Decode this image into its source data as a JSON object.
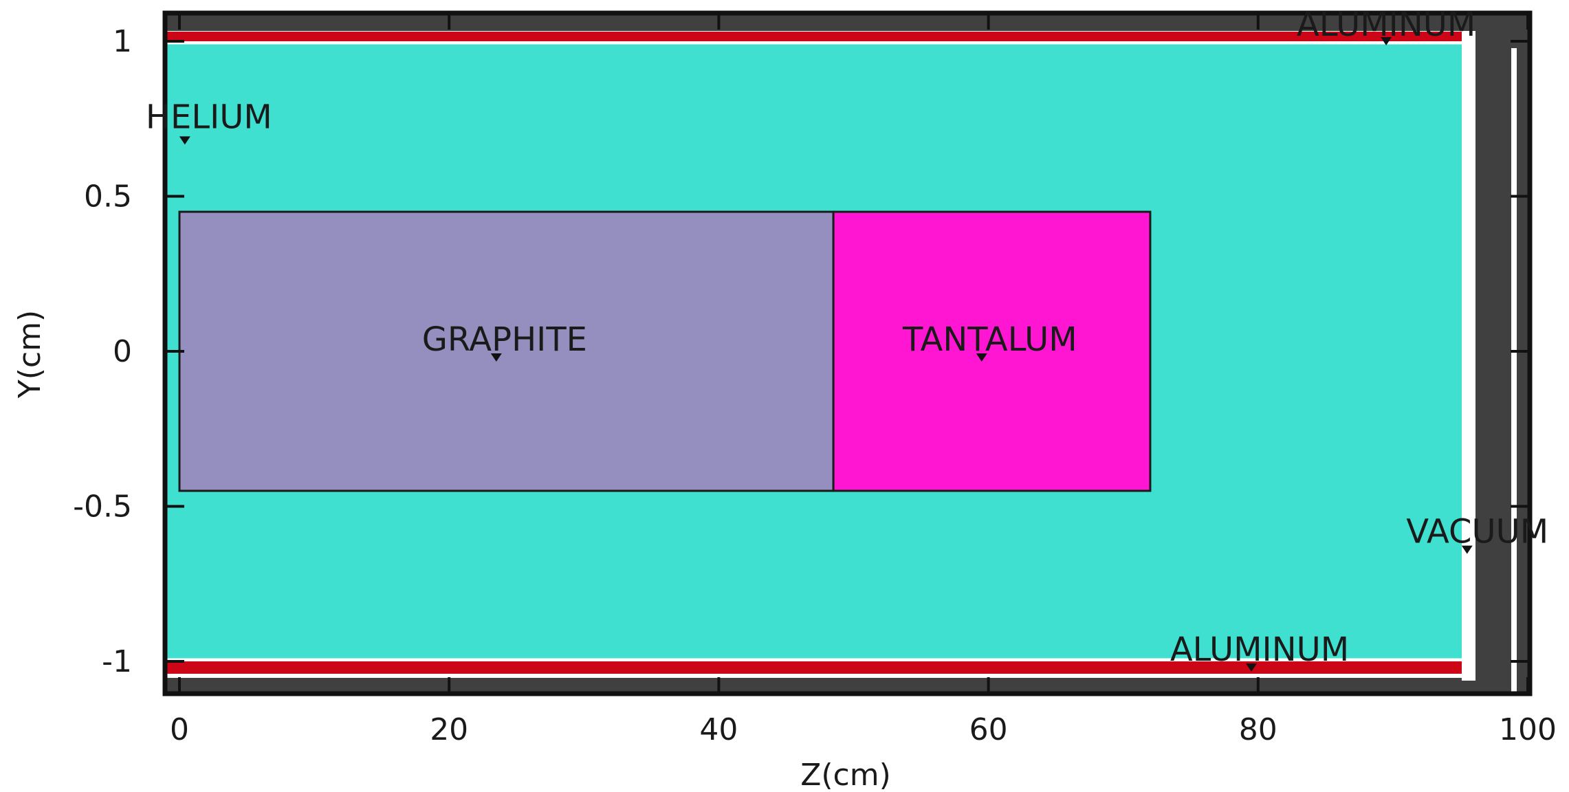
{
  "chart_data": {
    "type": "geometry",
    "xlabel": "Z(cm)",
    "ylabel": "Y(cm)",
    "xlim": [
      -1.2,
      100
    ],
    "ylim": [
      -1.1,
      1.1
    ],
    "x_ticks": [
      "0",
      "20",
      "40",
      "60",
      "80",
      "100"
    ],
    "y_ticks": [
      "1",
      "0.5",
      "0",
      "-0.5",
      "-1"
    ],
    "x_tick_values": [
      0,
      20,
      40,
      60,
      80,
      100
    ],
    "y_tick_values": [
      1,
      0.5,
      0,
      -0.5,
      -1
    ],
    "colors": {
      "helium": "#40e0d0",
      "graphite": "#948fbe",
      "tantalum": "#ff16d2",
      "aluminum": "#cc0616",
      "vacuum": "#404040",
      "outline": "#1a1a1a"
    },
    "regions": [
      {
        "name": "HELIUM",
        "z": [
          -1.2,
          95.8
        ],
        "y": [
          -1.05,
          1.05
        ]
      },
      {
        "name": "GRAPHITE",
        "z": [
          0,
          48.5
        ],
        "y": [
          -0.45,
          0.45
        ]
      },
      {
        "name": "TANTALUM",
        "z": [
          48.5,
          72
        ],
        "y": [
          -0.45,
          0.45
        ]
      }
    ],
    "labels": [
      {
        "text": "HELIUM",
        "marker": [
          0.4,
          0.68
        ]
      },
      {
        "text": "GRAPHITE",
        "marker": [
          23.5,
          -0.02
        ]
      },
      {
        "text": "TANTALUM",
        "marker": [
          59.5,
          -0.02
        ]
      },
      {
        "text": "ALUMINUM",
        "marker": [
          89.5,
          1.0
        ]
      },
      {
        "text": "ALUMINUM",
        "marker": [
          79.5,
          -1.02
        ]
      },
      {
        "text": "VACUUM",
        "marker": [
          95.5,
          -0.64
        ]
      }
    ]
  }
}
